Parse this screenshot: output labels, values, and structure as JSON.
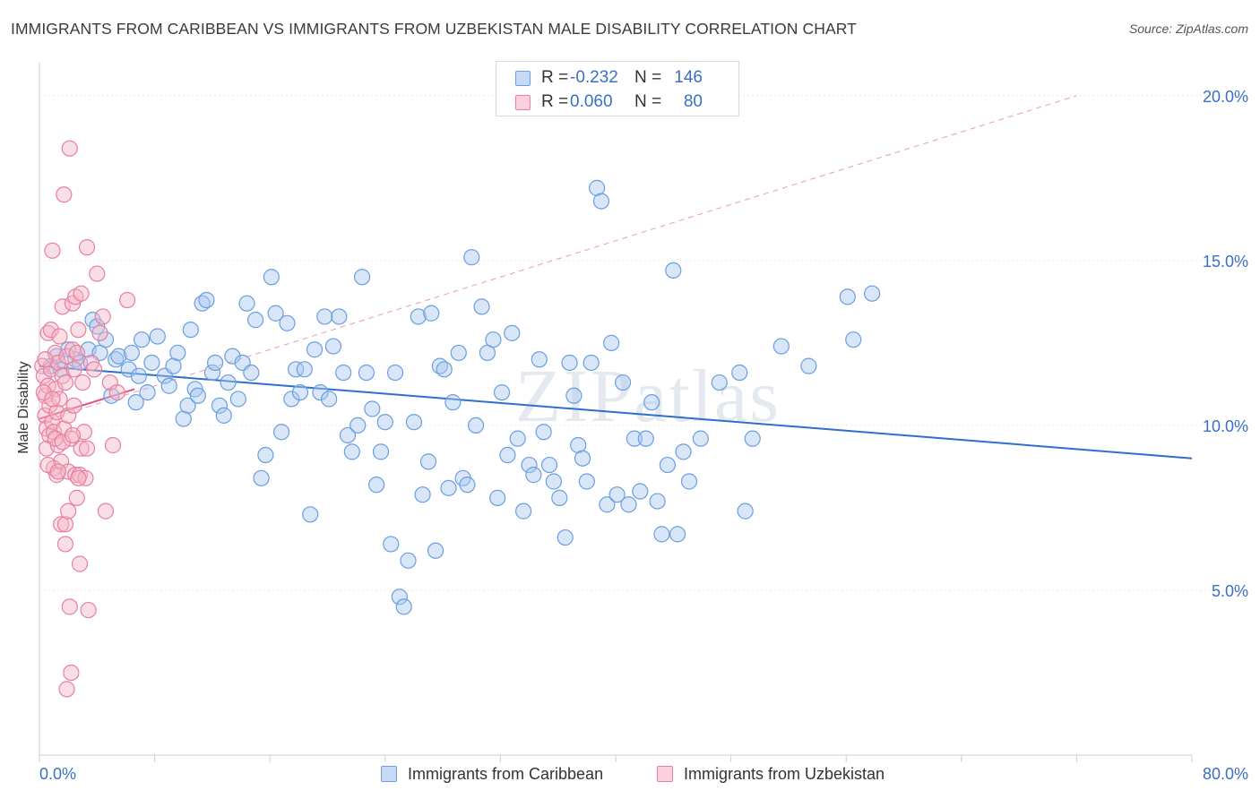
{
  "title": "IMMIGRANTS FROM CARIBBEAN VS IMMIGRANTS FROM UZBEKISTAN MALE DISABILITY CORRELATION CHART",
  "source": "Source: ZipAtlas.com",
  "watermark": "ZIPatlas",
  "legend_top": {
    "rows": [
      {
        "r_label": "R =",
        "r_value": "-0.232",
        "n_label": "N =",
        "n_value": "146",
        "color": "#a9c8f0"
      },
      {
        "r_label": "R =",
        "r_value": "0.060",
        "n_label": "N =",
        "n_value": "80",
        "color": "#f5b5c8"
      }
    ]
  },
  "legend_bottom": [
    {
      "label": "Immigrants from Caribbean",
      "color": "#a9c8f0"
    },
    {
      "label": "Immigrants from Uzbekistan",
      "color": "#f5b5c8"
    }
  ],
  "chart_data": {
    "type": "scatter",
    "title": "IMMIGRANTS FROM CARIBBEAN VS IMMIGRANTS FROM UZBEKISTAN MALE DISABILITY CORRELATION CHART",
    "xlabel": "",
    "ylabel": "Male Disability",
    "xlim": [
      0,
      80
    ],
    "ylim": [
      0,
      21
    ],
    "x_tick_labels": [
      "0.0%",
      "80.0%"
    ],
    "y_ticks": [
      5,
      10,
      15,
      20
    ],
    "y_tick_labels": [
      "5.0%",
      "10.0%",
      "15.0%",
      "20.0%"
    ],
    "grid": true,
    "legend_position": "top-center",
    "series": [
      {
        "name": "Immigrants from Caribbean",
        "color": "#6a9ee0",
        "fill": "#a9c8f0",
        "R": -0.232,
        "N": 146,
        "trend": {
          "x": [
            0,
            80
          ],
          "y": [
            11.8,
            9.0
          ],
          "style": "solid",
          "color": "#2f6fcc"
        },
        "points": [
          [
            0.8,
            11.8
          ],
          [
            1.2,
            12.1
          ],
          [
            1.5,
            11.7
          ],
          [
            2.0,
            12.3
          ],
          [
            2.5,
            12.0
          ],
          [
            2.8,
            11.9
          ],
          [
            3.4,
            12.3
          ],
          [
            3.7,
            13.2
          ],
          [
            4.0,
            13.0
          ],
          [
            4.2,
            12.2
          ],
          [
            4.6,
            12.6
          ],
          [
            5.0,
            10.9
          ],
          [
            5.3,
            12.0
          ],
          [
            5.5,
            12.1
          ],
          [
            6.2,
            11.7
          ],
          [
            6.4,
            12.2
          ],
          [
            6.7,
            10.7
          ],
          [
            6.9,
            11.5
          ],
          [
            7.1,
            12.6
          ],
          [
            7.5,
            11.0
          ],
          [
            7.8,
            11.9
          ],
          [
            8.2,
            12.7
          ],
          [
            8.7,
            11.5
          ],
          [
            9.0,
            11.2
          ],
          [
            9.3,
            11.8
          ],
          [
            9.6,
            12.2
          ],
          [
            10.0,
            10.2
          ],
          [
            10.3,
            10.6
          ],
          [
            10.5,
            12.9
          ],
          [
            10.8,
            11.1
          ],
          [
            11.0,
            10.9
          ],
          [
            11.3,
            13.7
          ],
          [
            11.6,
            13.8
          ],
          [
            12.0,
            11.6
          ],
          [
            12.2,
            11.9
          ],
          [
            12.5,
            10.6
          ],
          [
            12.8,
            10.3
          ],
          [
            13.1,
            11.3
          ],
          [
            13.4,
            12.1
          ],
          [
            13.8,
            10.8
          ],
          [
            14.1,
            11.9
          ],
          [
            14.4,
            13.7
          ],
          [
            14.7,
            11.6
          ],
          [
            15.0,
            13.2
          ],
          [
            15.4,
            8.4
          ],
          [
            15.7,
            9.1
          ],
          [
            16.1,
            14.5
          ],
          [
            16.4,
            13.4
          ],
          [
            16.8,
            9.8
          ],
          [
            17.2,
            13.1
          ],
          [
            17.5,
            10.8
          ],
          [
            17.8,
            11.7
          ],
          [
            18.1,
            11.0
          ],
          [
            18.4,
            11.7
          ],
          [
            18.8,
            7.3
          ],
          [
            19.1,
            12.3
          ],
          [
            19.5,
            11.0
          ],
          [
            19.8,
            13.3
          ],
          [
            20.1,
            10.8
          ],
          [
            20.4,
            12.4
          ],
          [
            20.8,
            13.3
          ],
          [
            21.1,
            11.6
          ],
          [
            21.4,
            9.7
          ],
          [
            21.7,
            9.2
          ],
          [
            22.1,
            10.0
          ],
          [
            22.4,
            14.5
          ],
          [
            22.7,
            11.6
          ],
          [
            23.1,
            10.5
          ],
          [
            23.4,
            8.2
          ],
          [
            23.7,
            9.2
          ],
          [
            24.0,
            10.1
          ],
          [
            24.4,
            6.4
          ],
          [
            24.7,
            11.6
          ],
          [
            25.0,
            4.8
          ],
          [
            25.3,
            4.5
          ],
          [
            25.6,
            5.9
          ],
          [
            26.0,
            10.1
          ],
          [
            26.3,
            13.3
          ],
          [
            26.6,
            7.9
          ],
          [
            27.0,
            8.9
          ],
          [
            27.2,
            13.4
          ],
          [
            27.5,
            6.2
          ],
          [
            27.8,
            11.8
          ],
          [
            28.1,
            11.7
          ],
          [
            28.4,
            8.1
          ],
          [
            28.7,
            10.7
          ],
          [
            29.1,
            12.2
          ],
          [
            29.4,
            8.4
          ],
          [
            29.7,
            8.2
          ],
          [
            30.0,
            15.1
          ],
          [
            30.3,
            10.0
          ],
          [
            30.7,
            13.6
          ],
          [
            31.1,
            12.2
          ],
          [
            31.5,
            12.6
          ],
          [
            31.8,
            7.8
          ],
          [
            32.1,
            11.0
          ],
          [
            32.5,
            9.1
          ],
          [
            32.8,
            12.8
          ],
          [
            33.2,
            9.6
          ],
          [
            33.6,
            7.4
          ],
          [
            34.0,
            8.8
          ],
          [
            34.3,
            8.5
          ],
          [
            34.7,
            12.0
          ],
          [
            35.0,
            9.8
          ],
          [
            35.4,
            8.8
          ],
          [
            35.7,
            8.3
          ],
          [
            36.1,
            7.8
          ],
          [
            36.5,
            6.6
          ],
          [
            36.8,
            11.9
          ],
          [
            37.1,
            10.9
          ],
          [
            37.4,
            9.4
          ],
          [
            37.7,
            9.0
          ],
          [
            38.0,
            8.3
          ],
          [
            38.3,
            11.9
          ],
          [
            38.7,
            17.2
          ],
          [
            39.0,
            16.8
          ],
          [
            39.4,
            7.6
          ],
          [
            39.7,
            12.5
          ],
          [
            40.1,
            7.9
          ],
          [
            40.5,
            11.3
          ],
          [
            40.9,
            7.6
          ],
          [
            41.3,
            9.6
          ],
          [
            41.7,
            8.0
          ],
          [
            42.1,
            9.6
          ],
          [
            42.5,
            10.7
          ],
          [
            42.9,
            7.7
          ],
          [
            43.2,
            6.7
          ],
          [
            43.6,
            8.8
          ],
          [
            44.0,
            14.7
          ],
          [
            44.3,
            6.7
          ],
          [
            44.7,
            9.2
          ],
          [
            45.1,
            8.3
          ],
          [
            45.9,
            9.6
          ],
          [
            47.2,
            11.3
          ],
          [
            48.6,
            11.6
          ],
          [
            49.0,
            7.4
          ],
          [
            49.5,
            9.6
          ],
          [
            51.5,
            12.4
          ],
          [
            53.4,
            11.8
          ],
          [
            56.1,
            13.9
          ],
          [
            56.5,
            12.6
          ],
          [
            57.8,
            14.0
          ]
        ]
      },
      {
        "name": "Immigrants from Uzbekistan",
        "color": "#e77fa0",
        "fill": "#f5b5c8",
        "R": 0.06,
        "N": 80,
        "trend": {
          "x": [
            0,
            6.6
          ],
          "y": [
            10.2,
            11.1
          ],
          "style": "solid",
          "color": "#e0507d"
        },
        "trend_dashed": {
          "x": [
            0,
            72
          ],
          "y": [
            10.1,
            20.0
          ],
          "style": "dashed",
          "color": "#e89ab2"
        },
        "points": [
          [
            0.2,
            11.8
          ],
          [
            0.3,
            11.5
          ],
          [
            0.4,
            10.9
          ],
          [
            0.4,
            10.3
          ],
          [
            0.5,
            9.9
          ],
          [
            0.5,
            9.3
          ],
          [
            0.6,
            12.8
          ],
          [
            0.6,
            11.2
          ],
          [
            0.7,
            10.6
          ],
          [
            0.7,
            9.7
          ],
          [
            0.8,
            12.9
          ],
          [
            0.8,
            11.7
          ],
          [
            0.9,
            15.3
          ],
          [
            0.9,
            10.1
          ],
          [
            1.0,
            8.7
          ],
          [
            1.0,
            9.8
          ],
          [
            1.1,
            12.2
          ],
          [
            1.1,
            11.1
          ],
          [
            1.2,
            10.4
          ],
          [
            1.2,
            8.5
          ],
          [
            1.3,
            11.9
          ],
          [
            1.3,
            9.4
          ],
          [
            1.4,
            12.7
          ],
          [
            1.4,
            10.8
          ],
          [
            1.5,
            8.9
          ],
          [
            1.5,
            7.0
          ],
          [
            1.6,
            13.6
          ],
          [
            1.6,
            11.5
          ],
          [
            1.7,
            17.0
          ],
          [
            1.7,
            9.9
          ],
          [
            1.8,
            7.0
          ],
          [
            1.8,
            6.4
          ],
          [
            1.9,
            12.1
          ],
          [
            1.9,
            2.0
          ],
          [
            2.0,
            10.3
          ],
          [
            2.0,
            8.6
          ],
          [
            2.1,
            18.4
          ],
          [
            2.1,
            4.5
          ],
          [
            2.2,
            9.6
          ],
          [
            2.2,
            2.5
          ],
          [
            2.3,
            12.3
          ],
          [
            2.3,
            13.7
          ],
          [
            2.4,
            11.7
          ],
          [
            2.4,
            10.6
          ],
          [
            2.5,
            13.9
          ],
          [
            2.5,
            8.5
          ],
          [
            2.6,
            12.2
          ],
          [
            2.6,
            7.8
          ],
          [
            2.7,
            12.9
          ],
          [
            2.8,
            5.8
          ],
          [
            2.8,
            8.5
          ],
          [
            2.9,
            14.0
          ],
          [
            2.9,
            9.3
          ],
          [
            3.0,
            11.3
          ],
          [
            3.1,
            9.8
          ],
          [
            3.2,
            8.4
          ],
          [
            3.3,
            15.4
          ],
          [
            3.3,
            9.3
          ],
          [
            3.4,
            4.4
          ],
          [
            3.6,
            11.9
          ],
          [
            3.8,
            11.7
          ],
          [
            4.0,
            14.6
          ],
          [
            4.2,
            12.8
          ],
          [
            4.4,
            13.3
          ],
          [
            4.6,
            7.4
          ],
          [
            4.9,
            11.3
          ],
          [
            5.1,
            9.4
          ],
          [
            5.4,
            11.0
          ],
          [
            6.1,
            13.8
          ],
          [
            0.3,
            11.0
          ],
          [
            0.4,
            12.0
          ],
          [
            0.6,
            8.8
          ],
          [
            0.9,
            10.8
          ],
          [
            1.1,
            9.6
          ],
          [
            1.3,
            8.6
          ],
          [
            1.6,
            9.5
          ],
          [
            1.8,
            11.3
          ],
          [
            2.0,
            7.4
          ],
          [
            2.3,
            9.7
          ],
          [
            2.7,
            8.4
          ]
        ]
      }
    ]
  }
}
